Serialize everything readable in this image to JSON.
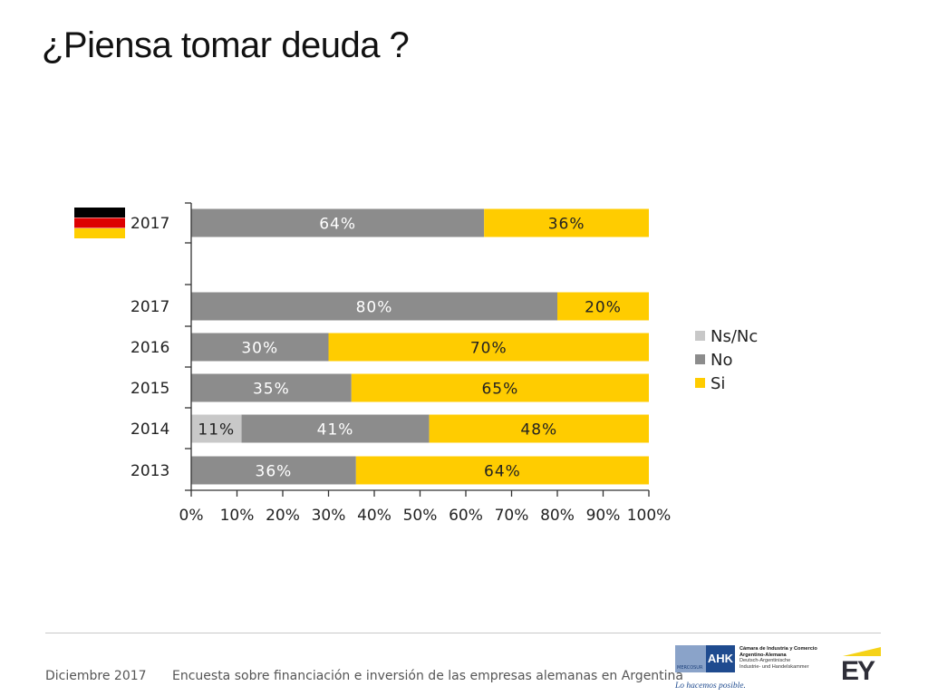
{
  "title": "¿Piensa tomar deuda ?",
  "footer": {
    "date": "Diciembre 2017",
    "description": "Encuesta sobre financiación e inversión de las empresas alemanas en Argentina"
  },
  "logos": {
    "ahk": {
      "short": "AHK",
      "mercosur": "MERCOSUR",
      "line1": "Cámara de Industria y Comercio",
      "line2": "Argentino-Alemana",
      "line3": "Deutsch-Argentinische",
      "line4": "Industrie- und Handelskammer",
      "slogan": "Lo hacemos posible."
    },
    "ey": {
      "text": "EY",
      "color": "#2e2e38",
      "accent": "#f5d218"
    }
  },
  "chart_data": {
    "type": "bar",
    "orientation": "horizontal",
    "stacked": "percent",
    "categories": [
      "2017",
      "2017",
      "2016",
      "2015",
      "2014",
      "2013"
    ],
    "flag_row_index": 0,
    "flag_icon": "germany-flag-icon",
    "series": [
      {
        "name": "Ns/Nc",
        "color": "#c8c8c8",
        "values": [
          0,
          0,
          0,
          0,
          11,
          0
        ]
      },
      {
        "name": "No",
        "color": "#8c8c8c",
        "values": [
          64,
          80,
          30,
          35,
          41,
          36
        ]
      },
      {
        "name": "Si",
        "color": "#ffcc00",
        "values": [
          36,
          20,
          70,
          65,
          48,
          64
        ]
      }
    ],
    "xticks": [
      "0%",
      "10%",
      "20%",
      "30%",
      "40%",
      "50%",
      "60%",
      "70%",
      "80%",
      "90%",
      "100%"
    ],
    "xlim": [
      0,
      100
    ],
    "legend_position": "right",
    "grid": false
  }
}
